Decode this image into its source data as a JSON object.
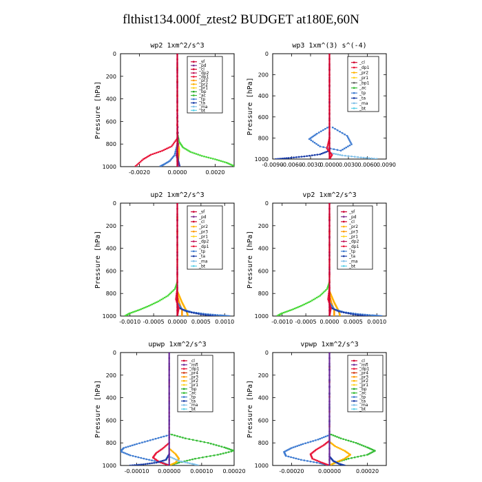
{
  "title": "flthist134.000f_ztest2  BUDGET at180E,60N",
  "colors": {
    "sf": "#cc0033",
    "pd": "#7b2d8e",
    "cl": "#d1002c",
    "dp2": "#c2185b",
    "dp1": "#e8173a",
    "pr3": "#ff9900",
    "pr2": "#ffb300",
    "pr1": "#ffd21f",
    "bp": "#22a826",
    "ac": "#33bb33",
    "tp": "#3e7bd1",
    "ta": "#1a3da8",
    "ma": "#7fbfe8",
    "bt": "#5ad0e8",
    "mfl": "#6a2a9a",
    "pr4": "#d43a14",
    "green2": "#4ad83a"
  },
  "chart_data": [
    {
      "type": "line",
      "title": "wp2  1xm^2/s^3",
      "xlabel": "",
      "ylabel": "Pressure [hPa]",
      "xlim": [
        -0.003,
        0.003
      ],
      "ylim": [
        1000,
        0
      ],
      "xticks": [
        -0.002,
        0,
        0.002
      ],
      "xticklabels": [
        "-0.0020",
        "0.0000",
        "0.0020"
      ],
      "yticks": [
        0,
        200,
        400,
        600,
        800,
        1000
      ],
      "legend": [
        "_sf",
        "_pd",
        "_cl",
        "_dp2",
        "_dp1",
        "_pr3",
        "_pr2",
        "_pr1",
        "_bp",
        "_ac",
        "_tp",
        "_ta",
        "_ma",
        "_bt"
      ],
      "series": [
        {
          "name": "_bp",
          "color": "green2",
          "x": [
            0,
            0,
            0.0001,
            0.0003,
            0.0007,
            0.0013,
            0.002,
            0.0026,
            0.003
          ],
          "y": [
            0,
            700,
            780,
            830,
            870,
            905,
            935,
            965,
            995
          ]
        },
        {
          "name": "_dp1",
          "color": "dp1",
          "x": [
            0,
            0,
            -0.0003,
            -0.0008,
            -0.0014,
            -0.0018,
            -0.0022
          ],
          "y": [
            0,
            750,
            820,
            860,
            895,
            935,
            995
          ]
        },
        {
          "name": "_pr2",
          "color": "pr2",
          "x": [
            0,
            0,
            5e-05,
            0.0001,
            8e-05,
            3e-05
          ],
          "y": [
            0,
            760,
            800,
            850,
            900,
            980
          ]
        },
        {
          "name": "_tp",
          "color": "tp",
          "x": [
            0,
            0,
            -0.00015,
            -0.0004,
            -0.0007,
            -0.0009
          ],
          "y": [
            0,
            800,
            900,
            950,
            980,
            998
          ]
        },
        {
          "name": "_ta",
          "color": "ta",
          "x": [
            0,
            0,
            5e-05,
            0.00012
          ],
          "y": [
            0,
            850,
            950,
            995
          ]
        },
        {
          "name": "_pd",
          "color": "pd",
          "x": [
            0,
            0,
            5e-05,
            -5e-05,
            0.0001
          ],
          "y": [
            0,
            500,
            800,
            900,
            1000
          ]
        },
        {
          "name": "_sf",
          "color": "sf",
          "x": [
            0,
            0,
            0,
            0
          ],
          "y": [
            0,
            300,
            700,
            1000
          ]
        }
      ]
    },
    {
      "type": "line",
      "title": "wp3  1xm^(3) s^(-4)",
      "xlabel": "",
      "ylabel": "Pressure [hPa]",
      "xlim": [
        -0.009,
        0.009
      ],
      "ylim": [
        1000,
        0
      ],
      "xticks": [
        -0.009,
        -0.006,
        -0.003,
        0,
        0.003,
        0.006,
        0.009
      ],
      "xticklabels": [
        "-0.0090",
        "-0.0060",
        "-0.0030",
        "0.0000",
        "0.0030",
        "0.0060",
        "0.0090"
      ],
      "yticks": [
        0,
        200,
        400,
        600,
        800,
        1000
      ],
      "legend": [
        "_cl",
        "_dp1",
        "_pr2",
        "_pr1",
        "_bp1",
        "_ac",
        "_tp",
        "_ta",
        "_ma",
        "_bt"
      ],
      "series": [
        {
          "name": "_tp",
          "color": "tp",
          "x": [
            0,
            0,
            -0.002,
            -0.0032,
            -0.0015,
            0.0018,
            0.0035,
            0.0028,
            0.0005
          ],
          "y": [
            0,
            690,
            760,
            810,
            880,
            920,
            860,
            780,
            700
          ]
        },
        {
          "name": "_ta",
          "color": "ta",
          "x": [
            0,
            0,
            -0.0015,
            -0.004,
            -0.0065,
            -0.0085
          ],
          "y": [
            0,
            920,
            955,
            975,
            990,
            1000
          ]
        },
        {
          "name": "_ma",
          "color": "ma",
          "x": [
            0,
            0,
            0.002,
            0.005,
            0.0075
          ],
          "y": [
            0,
            940,
            965,
            985,
            998
          ]
        },
        {
          "name": "_dp1",
          "color": "dp1",
          "x": [
            0,
            0,
            -0.0004,
            0.0004,
            0
          ],
          "y": [
            0,
            800,
            900,
            960,
            1000
          ]
        },
        {
          "name": "_cl",
          "color": "cl",
          "x": [
            0,
            0,
            0,
            0
          ],
          "y": [
            0,
            300,
            700,
            1000
          ]
        }
      ]
    },
    {
      "type": "line",
      "title": "up2  1xm^2/s^3",
      "xlabel": "",
      "ylabel": "Pressure [hPa]",
      "xlim": [
        -0.0012,
        0.0012
      ],
      "ylim": [
        1000,
        0
      ],
      "xticks": [
        -0.001,
        -0.0005,
        0,
        0.0005,
        0.001
      ],
      "xticklabels": [
        "-0.0010",
        "-0.0005",
        "0.0000",
        "0.0005",
        "0.0010"
      ],
      "yticks": [
        0,
        200,
        400,
        600,
        800,
        1000
      ],
      "legend": [
        "_sf",
        "_pd",
        "_cl",
        "_pr2",
        "_pr3",
        "_pr1",
        "_dp2",
        "_dp1",
        "_tp",
        "_ta",
        "_ma",
        "_bt"
      ],
      "series": [
        {
          "name": "_bp",
          "color": "green2",
          "x": [
            0,
            0,
            -5e-05,
            -0.0002,
            -0.0004,
            -0.0006,
            -0.0008,
            -0.001,
            -0.0011
          ],
          "y": [
            0,
            700,
            760,
            820,
            870,
            910,
            945,
            975,
            998
          ]
        },
        {
          "name": "_pr2",
          "color": "pr2",
          "x": [
            0,
            0,
            5e-05,
            0.0001,
            0.00015,
            0.0002,
            0.00022
          ],
          "y": [
            0,
            780,
            830,
            880,
            920,
            960,
            995
          ]
        },
        {
          "name": "_pr3",
          "color": "pr3",
          "x": [
            0,
            0,
            4e-05,
            0.0001,
            0.0001
          ],
          "y": [
            0,
            820,
            880,
            950,
            1000
          ]
        },
        {
          "name": "_tp",
          "color": "tp",
          "x": [
            0,
            0,
            0.0001,
            0.0003,
            0.0006,
            0.0009,
            0.0011
          ],
          "y": [
            0,
            880,
            940,
            965,
            982,
            993,
            1000
          ]
        },
        {
          "name": "_ta",
          "color": "ta",
          "x": [
            0,
            0,
            0.0002,
            0.0005,
            0.0008
          ],
          "y": [
            0,
            920,
            960,
            985,
            1000
          ]
        },
        {
          "name": "_dp1",
          "color": "dp1",
          "x": [
            0,
            0,
            -3e-05,
            3e-05,
            0
          ],
          "y": [
            0,
            750,
            850,
            930,
            1000
          ]
        },
        {
          "name": "_sf",
          "color": "sf",
          "x": [
            0,
            0,
            0,
            0
          ],
          "y": [
            0,
            300,
            700,
            1000
          ]
        }
      ]
    },
    {
      "type": "line",
      "title": "vp2  1xm^2/s^3",
      "xlabel": "",
      "ylabel": "Pressure [hPa]",
      "xlim": [
        -0.0012,
        0.0012
      ],
      "ylim": [
        1000,
        0
      ],
      "xticks": [
        -0.001,
        -0.0005,
        0,
        0.0005,
        0.001
      ],
      "xticklabels": [
        "-0.0010",
        "-0.0005",
        "0.0000",
        "0.0005",
        "0.0010"
      ],
      "yticks": [
        0,
        200,
        400,
        600,
        800,
        1000
      ],
      "legend": [
        "_sf",
        "_pd",
        "_cl",
        "_pr2",
        "_pr3",
        "_pr1",
        "_dp2",
        "_dp1",
        "_tp",
        "_ta",
        "_ma",
        "_bt"
      ],
      "series": [
        {
          "name": "_bp",
          "color": "green2",
          "x": [
            0,
            0,
            -5e-05,
            -0.0002,
            -0.0004,
            -0.0006,
            -0.0008,
            -0.001,
            -0.0011
          ],
          "y": [
            0,
            700,
            760,
            820,
            870,
            910,
            945,
            975,
            998
          ]
        },
        {
          "name": "_pr2",
          "color": "pr2",
          "x": [
            0,
            0,
            5e-05,
            0.0001,
            0.00015,
            0.0002,
            0.00022
          ],
          "y": [
            0,
            780,
            830,
            880,
            920,
            960,
            995
          ]
        },
        {
          "name": "_pr3",
          "color": "pr3",
          "x": [
            0,
            0,
            4e-05,
            0.0001,
            0.0001
          ],
          "y": [
            0,
            820,
            880,
            950,
            1000
          ]
        },
        {
          "name": "_tp",
          "color": "tp",
          "x": [
            0,
            0,
            0.0001,
            0.0003,
            0.0006,
            0.0009,
            0.0011
          ],
          "y": [
            0,
            880,
            940,
            965,
            982,
            993,
            1000
          ]
        },
        {
          "name": "_ta",
          "color": "ta",
          "x": [
            0,
            0,
            0.0002,
            0.0005,
            0.0008
          ],
          "y": [
            0,
            920,
            960,
            985,
            1000
          ]
        },
        {
          "name": "_dp1",
          "color": "dp1",
          "x": [
            0,
            0,
            -3e-05,
            3e-05,
            0
          ],
          "y": [
            0,
            750,
            850,
            930,
            1000
          ]
        },
        {
          "name": "_sf",
          "color": "sf",
          "x": [
            0,
            0,
            0,
            0
          ],
          "y": [
            0,
            300,
            700,
            1000
          ]
        }
      ]
    },
    {
      "type": "line",
      "title": "upwp  1xm^2/s^3",
      "xlabel": "",
      "ylabel": "Pressure [hPa]",
      "xlim": [
        -0.00015,
        0.0002
      ],
      "ylim": [
        1000,
        0
      ],
      "xticks": [
        -0.0001,
        0,
        0.0001,
        0.0002
      ],
      "xticklabels": [
        "-0.00010",
        "0.00000",
        "0.00010",
        "0.00020"
      ],
      "yticks": [
        0,
        200,
        400,
        600,
        800,
        1000
      ],
      "legend": [
        "_cl",
        "_mfl",
        "_dp1",
        "_pr4",
        "_pr3",
        "_pr2",
        "_pr1",
        "_bp",
        "_ac",
        "_tp",
        "_ta",
        "_ma",
        "_bt"
      ],
      "series": [
        {
          "name": "_ac",
          "color": "ac",
          "x": [
            0,
            0,
            5e-05,
            0.00012,
            0.00017,
            0.0002,
            0.00015,
            8e-05,
            3e-05,
            0
          ],
          "y": [
            0,
            720,
            760,
            800,
            840,
            870,
            905,
            940,
            975,
            1000
          ]
        },
        {
          "name": "_tp",
          "color": "tp",
          "x": [
            0,
            0,
            -5e-05,
            -0.0001,
            -0.00014,
            -0.00015,
            -0.00012,
            -7e-05,
            -2e-05,
            0
          ],
          "y": [
            0,
            730,
            770,
            810,
            845,
            875,
            910,
            945,
            975,
            1000
          ]
        },
        {
          "name": "_dp1",
          "color": "dp1",
          "x": [
            0,
            0,
            -2e-05,
            -4e-05,
            -5e-05,
            -3e-05,
            0
          ],
          "y": [
            0,
            800,
            850,
            890,
            930,
            970,
            1000
          ]
        },
        {
          "name": "_pr2",
          "color": "pr2",
          "x": [
            0,
            0,
            2e-05,
            3e-05,
            2e-05,
            0
          ],
          "y": [
            0,
            850,
            900,
            940,
            975,
            1000
          ]
        },
        {
          "name": "_ta",
          "color": "ta",
          "x": [
            0,
            0,
            -1e-05,
            -4e-05,
            -8e-05,
            -0.00012
          ],
          "y": [
            0,
            900,
            950,
            975,
            990,
            1000
          ]
        },
        {
          "name": "_ma",
          "color": "ma",
          "x": [
            0,
            0,
            3e-05,
            7e-05,
            9e-05
          ],
          "y": [
            0,
            920,
            960,
            985,
            1000
          ]
        },
        {
          "name": "_mfl",
          "color": "mfl",
          "x": [
            0,
            0,
            0,
            0
          ],
          "y": [
            0,
            300,
            700,
            1000
          ]
        }
      ]
    },
    {
      "type": "line",
      "title": "vpwp  1xm^2/s^3",
      "xlabel": "",
      "ylabel": "Pressure [hPa]",
      "xlim": [
        -0.0003,
        0.0003
      ],
      "ylim": [
        1000,
        0
      ],
      "xticks": [
        -0.0002,
        0,
        0.0002
      ],
      "xticklabels": [
        "-0.00020",
        "0.00000",
        "0.00020"
      ],
      "yticks": [
        0,
        200,
        400,
        600,
        800,
        1000
      ],
      "legend": [
        "_cl",
        "_mfl",
        "_dp1",
        "_pr4",
        "_pr3",
        "_pr2",
        "_pr1",
        "_bp",
        "_ac",
        "_tp",
        "_ta",
        "_ma",
        "_bt"
      ],
      "series": [
        {
          "name": "_ac",
          "color": "ac",
          "x": [
            0,
            0,
            6e-05,
            0.00014,
            0.0002,
            0.00024,
            0.0002,
            0.0001,
            3e-05,
            0
          ],
          "y": [
            0,
            720,
            760,
            800,
            840,
            870,
            905,
            940,
            975,
            1000
          ]
        },
        {
          "name": "_tp",
          "color": "tp",
          "x": [
            0,
            0,
            -6e-05,
            -0.00014,
            -0.0002,
            -0.00024,
            -0.00023,
            -0.00015,
            -5e-05,
            0
          ],
          "y": [
            0,
            730,
            770,
            810,
            845,
            880,
            915,
            950,
            980,
            1000
          ]
        },
        {
          "name": "_dp1",
          "color": "dp1",
          "x": [
            0,
            0,
            -3e-05,
            -7e-05,
            -0.0001,
            -9e-05,
            -4e-05,
            0
          ],
          "y": [
            0,
            780,
            820,
            860,
            900,
            940,
            975,
            1000
          ]
        },
        {
          "name": "_pr2",
          "color": "pr2",
          "x": [
            0,
            0,
            3e-05,
            8e-05,
            0.00011,
            8e-05,
            3e-05,
            0
          ],
          "y": [
            0,
            790,
            830,
            870,
            905,
            940,
            975,
            1000
          ]
        },
        {
          "name": "_ta",
          "color": "ta",
          "x": [
            0,
            0,
            2e-05,
            5e-05,
            8e-05
          ],
          "y": [
            0,
            920,
            960,
            985,
            1000
          ]
        },
        {
          "name": "_mfl",
          "color": "mfl",
          "x": [
            0,
            0,
            0,
            0
          ],
          "y": [
            0,
            300,
            700,
            1000
          ]
        }
      ]
    }
  ]
}
